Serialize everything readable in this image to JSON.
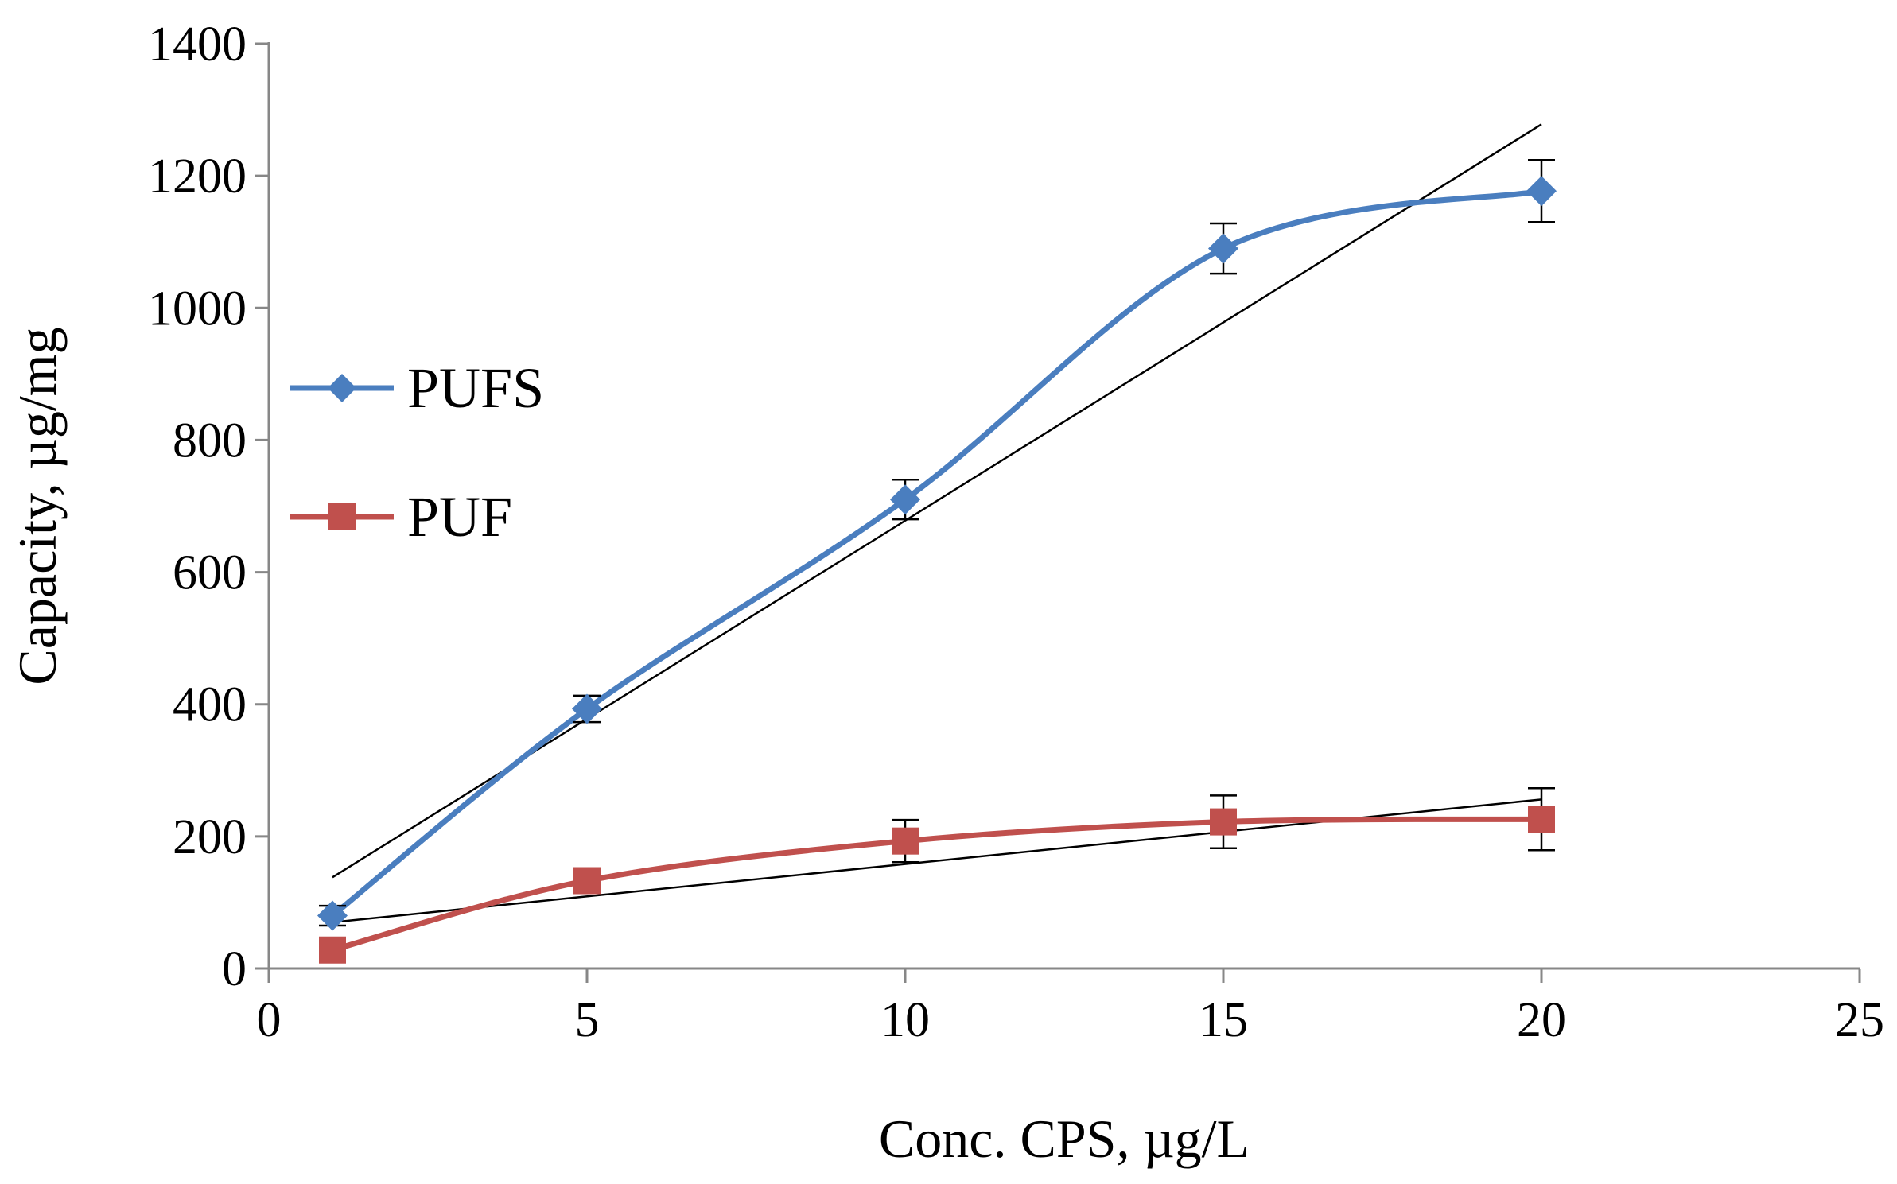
{
  "chart_data": {
    "type": "line",
    "title": "",
    "xlabel": "Conc. CPS, µg/L",
    "ylabel": "Capacity, µg/mg",
    "xlim": [
      0,
      25
    ],
    "ylim": [
      0,
      1400
    ],
    "xticks": [
      0,
      5,
      10,
      15,
      20,
      25
    ],
    "yticks": [
      0,
      200,
      400,
      600,
      800,
      1000,
      1200,
      1400
    ],
    "xtick_labels": [
      "0",
      "5",
      "10",
      "15",
      "20",
      "25"
    ],
    "ytick_labels": [
      "0",
      "200",
      "400",
      "600",
      "800",
      "1000",
      "1200",
      "1400"
    ],
    "grid": false,
    "legend_position": "left",
    "series": [
      {
        "name": "PUFS",
        "color": "#4a7ebf",
        "marker": "diamond",
        "x": [
          1,
          5,
          10,
          15,
          20
        ],
        "y": [
          80,
          393,
          710,
          1090,
          1177
        ],
        "error": [
          15,
          20,
          30,
          38,
          47
        ],
        "trendline": {
          "x": [
            1,
            20
          ],
          "y": [
            138,
            1278
          ],
          "color": "#000000"
        }
      },
      {
        "name": "PUF",
        "color": "#c0504d",
        "marker": "square",
        "x": [
          1,
          5,
          10,
          15,
          20
        ],
        "y": [
          28,
          133,
          193,
          222,
          226
        ],
        "error": [
          10,
          10,
          32,
          40,
          47
        ],
        "trendline": {
          "x": [
            1,
            20
          ],
          "y": [
            70,
            256
          ],
          "color": "#000000"
        }
      }
    ]
  }
}
